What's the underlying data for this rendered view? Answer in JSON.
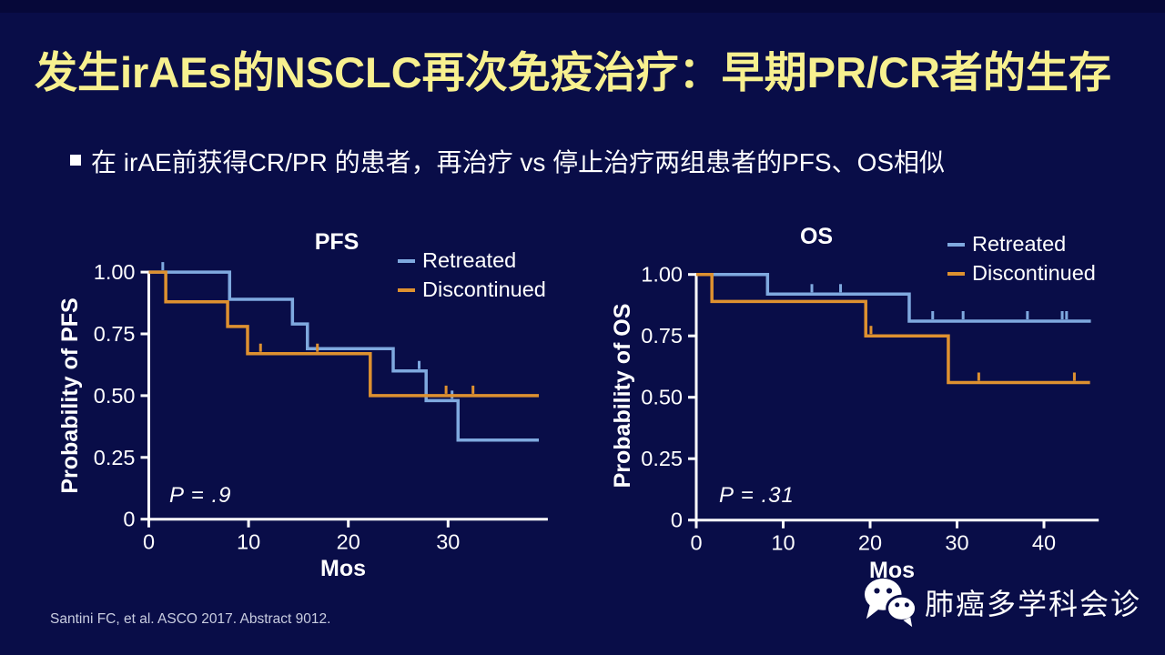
{
  "title": "发生irAEs的NSCLC再次免疫治疗：早期PR/CR者的生存",
  "bullet": "在 irAE前获得CR/PR 的患者，再治疗 vs 停止治疗两组患者的PFS、OS相似",
  "footer": {
    "citation": "Santini FC, et al. ASCO 2017. Abstract 9012."
  },
  "watermark": {
    "icon": "wechat-icon",
    "label": "肺癌多学科会诊"
  },
  "colors": {
    "background": "#090d48",
    "title_text": "#f7f08f",
    "text": "#ffffff",
    "axis": "#ffffff",
    "retreated": "#7fa9df",
    "discontinued": "#de9130",
    "citation_text": "#c9cde0"
  },
  "chart_data": [
    {
      "type": "line",
      "subtype": "kaplan-meier-step",
      "title": "PFS",
      "xlabel": "Mos",
      "ylabel": "Probability of PFS",
      "p_value_text": "P = .9",
      "legend_position": "top-right",
      "grid": false,
      "xlim": [
        0,
        40
      ],
      "ylim": [
        0,
        1.0
      ],
      "xticks": [
        {
          "v": 0,
          "label": "0"
        },
        {
          "v": 10,
          "label": "10"
        },
        {
          "v": 20,
          "label": "20"
        },
        {
          "v": 30,
          "label": "30"
        }
      ],
      "yticks": [
        {
          "v": 0,
          "label": "0"
        },
        {
          "v": 0.25,
          "label": "0.25"
        },
        {
          "v": 0.5,
          "label": "0.50"
        },
        {
          "v": 0.75,
          "label": "0.75"
        },
        {
          "v": 1.0,
          "label": "1.00"
        }
      ],
      "legend": [
        {
          "name": "Retreated",
          "color": "retreated"
        },
        {
          "name": "Discontinued",
          "color": "discontinued"
        }
      ],
      "series": [
        {
          "name": "Retreated",
          "color": "retreated",
          "steps": [
            [
              0,
              1.0
            ],
            [
              8.1,
              0.89
            ],
            [
              14.4,
              0.79
            ],
            [
              15.9,
              0.69
            ],
            [
              24.5,
              0.6
            ],
            [
              27.8,
              0.48
            ],
            [
              31.0,
              0.32
            ]
          ],
          "end_x": 39.1,
          "censors": [
            [
              1.4,
              1.0
            ],
            [
              27.1,
              0.6
            ],
            [
              30.4,
              0.48
            ]
          ]
        },
        {
          "name": "Discontinued",
          "color": "discontinued",
          "steps": [
            [
              0,
              1.0
            ],
            [
              1.7,
              0.88
            ],
            [
              7.9,
              0.78
            ],
            [
              9.9,
              0.67
            ],
            [
              22.2,
              0.5
            ]
          ],
          "end_x": 39.1,
          "censors": [
            [
              11.2,
              0.67
            ],
            [
              16.9,
              0.67
            ],
            [
              29.8,
              0.5
            ],
            [
              32.5,
              0.5
            ]
          ]
        }
      ]
    },
    {
      "type": "line",
      "subtype": "kaplan-meier-step",
      "title": "OS",
      "xlabel": "Mos",
      "ylabel": "Probability of OS",
      "p_value_text": "P = .31",
      "legend_position": "top-right",
      "grid": false,
      "xlim": [
        0,
        46.3
      ],
      "ylim": [
        0,
        1.0
      ],
      "xticks": [
        {
          "v": 0,
          "label": "0"
        },
        {
          "v": 10,
          "label": "10"
        },
        {
          "v": 20,
          "label": "20"
        },
        {
          "v": 30,
          "label": "30"
        },
        {
          "v": 40,
          "label": "40"
        }
      ],
      "yticks": [
        {
          "v": 0,
          "label": "0"
        },
        {
          "v": 0.25,
          "label": "0.25"
        },
        {
          "v": 0.5,
          "label": "0.50"
        },
        {
          "v": 0.75,
          "label": "0.75"
        },
        {
          "v": 1.0,
          "label": "1.00"
        }
      ],
      "legend": [
        {
          "name": "Retreated",
          "color": "retreated"
        },
        {
          "name": "Discontinued",
          "color": "discontinued"
        }
      ],
      "series": [
        {
          "name": "Retreated",
          "color": "retreated",
          "steps": [
            [
              0,
              1.0
            ],
            [
              8.2,
              0.92
            ],
            [
              24.5,
              0.81
            ]
          ],
          "end_x": 45.4,
          "censors": [
            [
              13.3,
              0.92
            ],
            [
              16.6,
              0.92
            ],
            [
              27.2,
              0.81
            ],
            [
              30.7,
              0.81
            ],
            [
              38.1,
              0.81
            ],
            [
              42.1,
              0.81
            ],
            [
              42.6,
              0.81
            ]
          ]
        },
        {
          "name": "Discontinued",
          "color": "discontinued",
          "steps": [
            [
              0,
              1.0
            ],
            [
              1.8,
              0.89
            ],
            [
              19.5,
              0.75
            ],
            [
              29.0,
              0.56
            ]
          ],
          "end_x": 45.3,
          "censors": [
            [
              20.1,
              0.75
            ],
            [
              32.5,
              0.56
            ],
            [
              43.5,
              0.56
            ]
          ]
        }
      ]
    }
  ]
}
